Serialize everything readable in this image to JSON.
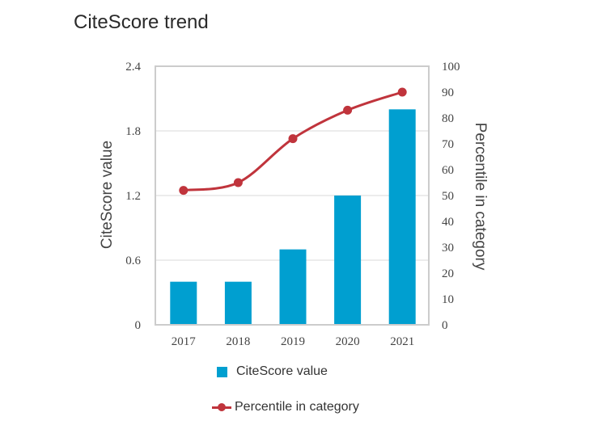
{
  "chart_data": {
    "type": "bar",
    "title": "CiteScore trend",
    "categories": [
      "2017",
      "2018",
      "2019",
      "2020",
      "2021"
    ],
    "series": [
      {
        "name": "CiteScore value",
        "kind": "bar",
        "axis": "left",
        "color": "#009fd0",
        "values": [
          0.4,
          0.4,
          0.7,
          1.2,
          2.0
        ]
      },
      {
        "name": "Percentile in category",
        "kind": "line",
        "axis": "right",
        "color": "#c0343c",
        "values": [
          52,
          55,
          72,
          83,
          90
        ]
      }
    ],
    "ylabel": "CiteScore value",
    "y2label": "Percentile in category",
    "ylim": [
      0,
      2.4
    ],
    "y2lim": [
      0,
      100
    ],
    "yticks": [
      "0",
      "0.6",
      "1.2",
      "1.8",
      "2.4"
    ],
    "yticks_values": [
      0,
      0.6,
      1.2,
      1.8,
      2.4
    ],
    "y2ticks": [
      "0",
      "10",
      "20",
      "30",
      "40",
      "50",
      "60",
      "70",
      "80",
      "90",
      "100"
    ],
    "y2ticks_values": [
      0,
      10,
      20,
      30,
      40,
      50,
      60,
      70,
      80,
      90,
      100
    ],
    "grid": true,
    "legend_position": "bottom"
  },
  "legend": {
    "bar_label": "CiteScore value",
    "line_label": "Percentile in category"
  },
  "colors": {
    "bar": "#009fd0",
    "line": "#c0343c",
    "grid": "#e6e6e6",
    "frame": "#cccccc"
  }
}
